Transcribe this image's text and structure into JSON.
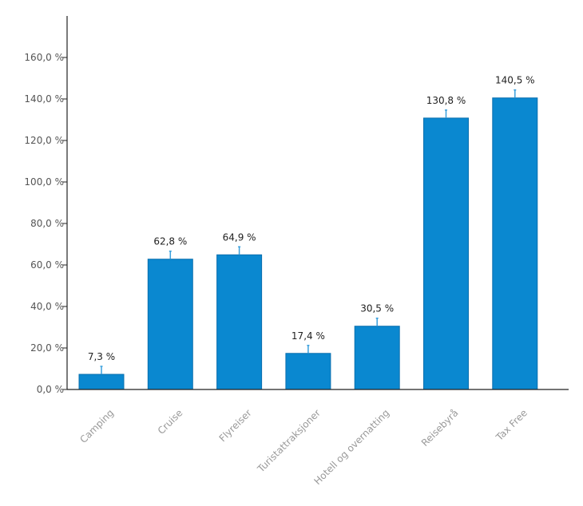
{
  "chart_data": {
    "type": "bar",
    "title": "",
    "xlabel": "",
    "ylabel": "",
    "categories": [
      "Camping",
      "Cruise",
      "Flyreiser",
      "Turistattraksjoner",
      "Hotell og overnatting",
      "Reisebyrå",
      "Tax Free"
    ],
    "values": [
      7.3,
      62.8,
      64.9,
      17.4,
      30.5,
      130.8,
      140.5
    ],
    "value_labels": [
      "7,3 %",
      "62,8 %",
      "64,9 %",
      "17,4 %",
      "30,5 %",
      "130,8 %",
      "140,5 %"
    ],
    "ylim": [
      0,
      180
    ],
    "yticks": [
      0,
      20,
      40,
      60,
      80,
      100,
      120,
      140,
      160
    ],
    "ytick_labels": [
      "0,0 %",
      "20,0 %",
      "40,0 %",
      "60,0 %",
      "80,0 %",
      "100,0 %",
      "120,0 %",
      "140,0 %",
      "160,0 %"
    ],
    "error_bars": true,
    "grid": false,
    "colors": {
      "bar": "#0a88d0",
      "bar_stroke": "#0a6fae",
      "error_bar": "#3aa0dd",
      "axis": "#222222"
    }
  }
}
